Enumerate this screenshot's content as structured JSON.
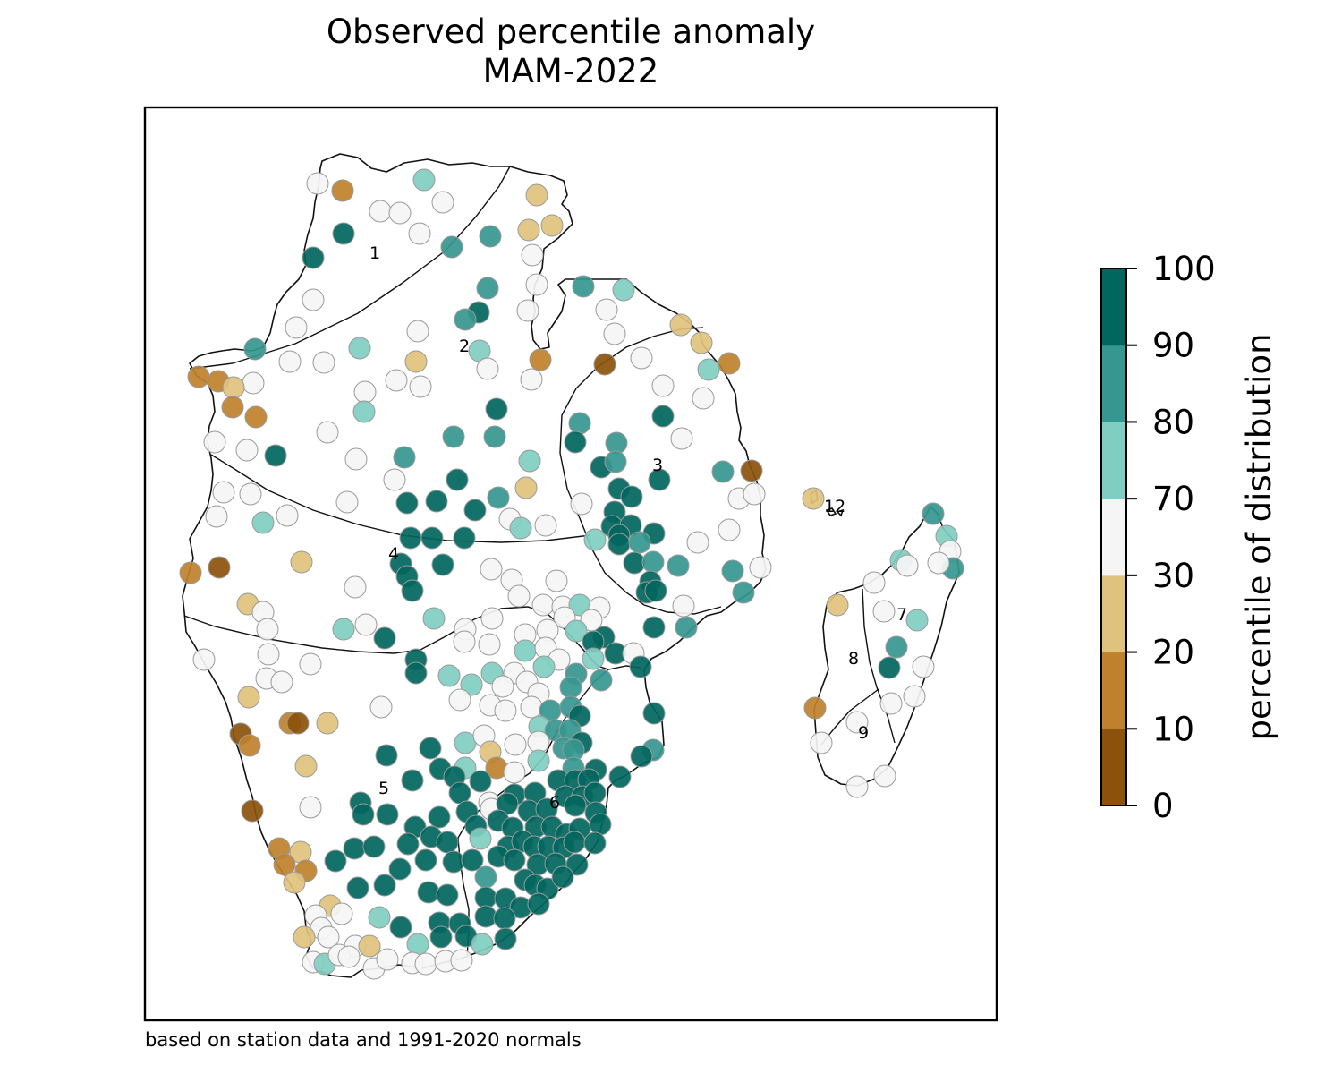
{
  "title": {
    "line1": "Observed percentile anomaly",
    "line2": "MAM-2022"
  },
  "footnote": "based on station data and 1991-2020 normals",
  "colorbar": {
    "label": "percentile of distribution",
    "ticks": [
      "0",
      "10",
      "20",
      "30",
      "70",
      "80",
      "90",
      "100"
    ],
    "classes": [
      {
        "from": 0,
        "to": 10,
        "color": "#8c510a"
      },
      {
        "from": 10,
        "to": 20,
        "color": "#bf812d"
      },
      {
        "from": 20,
        "to": 30,
        "color": "#dfc27d"
      },
      {
        "from": 30,
        "to": 70,
        "color": "#f5f5f5"
      },
      {
        "from": 70,
        "to": 80,
        "color": "#80cdc1"
      },
      {
        "from": 80,
        "to": 90,
        "color": "#35978f"
      },
      {
        "from": 90,
        "to": 100,
        "color": "#01665e"
      }
    ]
  },
  "regions": [
    "1",
    "2",
    "3",
    "4",
    "5",
    "6",
    "7",
    "8",
    "9",
    "12"
  ],
  "stations": [
    [
      355,
      205,
      "n"
    ],
    [
      383,
      213,
      "o"
    ],
    [
      474,
      201,
      "s"
    ],
    [
      600,
      218,
      "y"
    ],
    [
      425,
      236,
      "n"
    ],
    [
      447,
      238,
      "n"
    ],
    [
      495,
      226,
      "n"
    ],
    [
      591,
      257,
      "y"
    ],
    [
      617,
      252,
      "y"
    ],
    [
      384,
      261,
      "d"
    ],
    [
      469,
      261,
      "n"
    ],
    [
      505,
      276,
      "m"
    ],
    [
      548,
      264,
      "m"
    ],
    [
      595,
      285,
      "n"
    ],
    [
      350,
      288,
      "d"
    ],
    [
      600,
      318,
      "n"
    ],
    [
      545,
      322,
      "m"
    ],
    [
      652,
      320,
      "m"
    ],
    [
      697,
      324,
      "s"
    ],
    [
      350,
      335,
      "n"
    ],
    [
      590,
      347,
      "n"
    ],
    [
      535,
      349,
      "d"
    ],
    [
      520,
      357,
      "m"
    ],
    [
      678,
      346,
      "n"
    ],
    [
      761,
      363,
      "y"
    ],
    [
      331,
      366,
      "n"
    ],
    [
      467,
      370,
      "n"
    ],
    [
      687,
      373,
      "n"
    ],
    [
      784,
      383,
      "y"
    ],
    [
      285,
      390,
      "m"
    ],
    [
      402,
      389,
      "s"
    ],
    [
      536,
      392,
      "s"
    ],
    [
      465,
      404,
      "y"
    ],
    [
      324,
      404,
      "n"
    ],
    [
      362,
      405,
      "n"
    ],
    [
      545,
      412,
      "n"
    ],
    [
      604,
      402,
      "o"
    ],
    [
      676,
      407,
      "b"
    ],
    [
      717,
      400,
      "n"
    ],
    [
      792,
      413,
      "s"
    ],
    [
      815,
      406,
      "o"
    ],
    [
      222,
      421,
      "o"
    ],
    [
      244,
      426,
      "o"
    ],
    [
      283,
      428,
      "n"
    ],
    [
      261,
      433,
      "y"
    ],
    [
      443,
      425,
      "n"
    ],
    [
      470,
      432,
      "n"
    ],
    [
      594,
      424,
      "n"
    ],
    [
      741,
      431,
      "n"
    ],
    [
      786,
      445,
      "n"
    ],
    [
      408,
      438,
      "n"
    ],
    [
      260,
      455,
      "o"
    ],
    [
      286,
      466,
      "o"
    ],
    [
      407,
      460,
      "s"
    ],
    [
      555,
      457,
      "d"
    ],
    [
      741,
      465,
      "d"
    ],
    [
      648,
      473,
      "m"
    ],
    [
      366,
      483,
      "n"
    ],
    [
      507,
      488,
      "m"
    ],
    [
      553,
      488,
      "m"
    ],
    [
      643,
      494,
      "d"
    ],
    [
      689,
      495,
      "m"
    ],
    [
      762,
      490,
      "n"
    ],
    [
      240,
      494,
      "n"
    ],
    [
      276,
      503,
      "n"
    ],
    [
      308,
      509,
      "d"
    ],
    [
      398,
      513,
      "n"
    ],
    [
      452,
      511,
      "m"
    ],
    [
      592,
      515,
      "s"
    ],
    [
      672,
      522,
      "d"
    ],
    [
      688,
      516,
      "m"
    ],
    [
      737,
      536,
      "d"
    ],
    [
      808,
      527,
      "m"
    ],
    [
      840,
      526,
      "b"
    ],
    [
      441,
      536,
      "n"
    ],
    [
      511,
      536,
      "d"
    ],
    [
      588,
      545,
      "y"
    ],
    [
      692,
      546,
      "d"
    ],
    [
      706,
      555,
      "d"
    ],
    [
      250,
      550,
      "n"
    ],
    [
      280,
      552,
      "n"
    ],
    [
      388,
      561,
      "n"
    ],
    [
      455,
      562,
      "d"
    ],
    [
      488,
      560,
      "d"
    ],
    [
      557,
      556,
      "m"
    ],
    [
      531,
      570,
      "d"
    ],
    [
      650,
      563,
      "n"
    ],
    [
      687,
      572,
      "d"
    ],
    [
      684,
      588,
      "d"
    ],
    [
      705,
      587,
      "d"
    ],
    [
      826,
      557,
      "n"
    ],
    [
      843,
      552,
      "n"
    ],
    [
      909,
      557,
      "y"
    ],
    [
      242,
      577,
      "n"
    ],
    [
      294,
      584,
      "s"
    ],
    [
      321,
      576,
      "n"
    ],
    [
      570,
      580,
      "n"
    ],
    [
      582,
      590,
      "s"
    ],
    [
      610,
      587,
      "n"
    ],
    [
      692,
      598,
      "d"
    ],
    [
      731,
      596,
      "d"
    ],
    [
      815,
      592,
      "n"
    ],
    [
      459,
      601,
      "d"
    ],
    [
      483,
      601,
      "d"
    ],
    [
      519,
      601,
      "d"
    ],
    [
      665,
      603,
      "s"
    ],
    [
      692,
      608,
      "d"
    ],
    [
      715,
      606,
      "m"
    ],
    [
      709,
      629,
      "d"
    ],
    [
      780,
      606,
      "n"
    ],
    [
      213,
      640,
      "o"
    ],
    [
      245,
      634,
      "b"
    ],
    [
      337,
      628,
      "y"
    ],
    [
      495,
      631,
      "d"
    ],
    [
      448,
      630,
      "d"
    ],
    [
      549,
      636,
      "n"
    ],
    [
      572,
      648,
      "n"
    ],
    [
      622,
      649,
      "n"
    ],
    [
      730,
      628,
      "m"
    ],
    [
      758,
      632,
      "m"
    ],
    [
      819,
      638,
      "m"
    ],
    [
      850,
      634,
      "n"
    ],
    [
      455,
      644,
      "d"
    ],
    [
      461,
      660,
      "d"
    ],
    [
      397,
      656,
      "n"
    ],
    [
      727,
      650,
      "d"
    ],
    [
      723,
      662,
      "d"
    ],
    [
      733,
      660,
      "d"
    ],
    [
      580,
      666,
      "n"
    ],
    [
      607,
      676,
      "n"
    ],
    [
      629,
      678,
      "n"
    ],
    [
      648,
      676,
      "s"
    ],
    [
      670,
      679,
      "n"
    ],
    [
      764,
      677,
      "n"
    ],
    [
      831,
      662,
      "m"
    ],
    [
      277,
      675,
      "y"
    ],
    [
      294,
      684,
      "n"
    ],
    [
      299,
      703,
      "n"
    ],
    [
      485,
      691,
      "s"
    ],
    [
      520,
      703,
      "n"
    ],
    [
      550,
      691,
      "n"
    ],
    [
      631,
      690,
      "n"
    ],
    [
      661,
      693,
      "n"
    ],
    [
      384,
      703,
      "s"
    ],
    [
      409,
      698,
      "n"
    ],
    [
      587,
      709,
      "n"
    ],
    [
      612,
      704,
      "n"
    ],
    [
      644,
      705,
      "s"
    ],
    [
      675,
      712,
      "d"
    ],
    [
      663,
      717,
      "d"
    ],
    [
      688,
      730,
      "d"
    ],
    [
      731,
      701,
      "d"
    ],
    [
      767,
      701,
      "m"
    ],
    [
      430,
      713,
      "d"
    ],
    [
      519,
      717,
      "n"
    ],
    [
      547,
      720,
      "n"
    ],
    [
      587,
      727,
      "s"
    ],
    [
      610,
      724,
      "n"
    ],
    [
      625,
      737,
      "n"
    ],
    [
      663,
      736,
      "s"
    ],
    [
      708,
      730,
      "n"
    ],
    [
      465,
      737,
      "d"
    ],
    [
      465,
      752,
      "d"
    ],
    [
      502,
      755,
      "s"
    ],
    [
      527,
      765,
      "s"
    ],
    [
      550,
      752,
      "s"
    ],
    [
      575,
      752,
      "n"
    ],
    [
      608,
      745,
      "s"
    ],
    [
      644,
      753,
      "m"
    ],
    [
      672,
      760,
      "m"
    ],
    [
      716,
      745,
      "d"
    ],
    [
      228,
      737,
      "n"
    ],
    [
      300,
      731,
      "n"
    ],
    [
      347,
      742,
      "n"
    ],
    [
      298,
      758,
      "n"
    ],
    [
      315,
      762,
      "n"
    ],
    [
      562,
      767,
      "n"
    ],
    [
      589,
      762,
      "n"
    ],
    [
      602,
      775,
      "n"
    ],
    [
      638,
      768,
      "m"
    ],
    [
      278,
      779,
      "y"
    ],
    [
      514,
      782,
      "n"
    ],
    [
      548,
      788,
      "n"
    ],
    [
      565,
      794,
      "n"
    ],
    [
      594,
      790,
      "n"
    ],
    [
      615,
      794,
      "m"
    ],
    [
      638,
      790,
      "m"
    ],
    [
      648,
      800,
      "d"
    ],
    [
      731,
      797,
      "d"
    ],
    [
      426,
      790,
      "n"
    ],
    [
      324,
      808,
      "o"
    ],
    [
      333,
      808,
      "b"
    ],
    [
      366,
      808,
      "y"
    ],
    [
      603,
      812,
      "s"
    ],
    [
      621,
      816,
      "m"
    ],
    [
      637,
      816,
      "m"
    ],
    [
      269,
      820,
      "b"
    ],
    [
      279,
      833,
      "o"
    ],
    [
      520,
      830,
      "s"
    ],
    [
      541,
      822,
      "n"
    ],
    [
      576,
      832,
      "n"
    ],
    [
      602,
      829,
      "n"
    ],
    [
      630,
      836,
      "m"
    ],
    [
      650,
      830,
      "d"
    ],
    [
      641,
      838,
      "m"
    ],
    [
      730,
      838,
      "m"
    ],
    [
      717,
      845,
      "d"
    ],
    [
      432,
      844,
      "d"
    ],
    [
      481,
      836,
      "d"
    ],
    [
      492,
      859,
      "d"
    ],
    [
      548,
      840,
      "y"
    ],
    [
      555,
      858,
      "o"
    ],
    [
      575,
      863,
      "n"
    ],
    [
      602,
      850,
      "s"
    ],
    [
      641,
      858,
      "m"
    ],
    [
      666,
      860,
      "d"
    ],
    [
      342,
      856,
      "y"
    ],
    [
      520,
      858,
      "s"
    ],
    [
      461,
      872,
      "d"
    ],
    [
      508,
      868,
      "d"
    ],
    [
      537,
      873,
      "d"
    ],
    [
      624,
      872,
      "d"
    ],
    [
      643,
      872,
      "d"
    ],
    [
      658,
      871,
      "d"
    ],
    [
      693,
      868,
      "d"
    ],
    [
      403,
      897,
      "d"
    ],
    [
      282,
      906,
      "b"
    ],
    [
      347,
      902,
      "n"
    ],
    [
      514,
      886,
      "d"
    ],
    [
      547,
      897,
      "n"
    ],
    [
      575,
      888,
      "d"
    ],
    [
      598,
      886,
      "d"
    ],
    [
      632,
      890,
      "d"
    ],
    [
      651,
      890,
      "d"
    ],
    [
      665,
      886,
      "d"
    ],
    [
      406,
      910,
      "d"
    ],
    [
      433,
      910,
      "d"
    ],
    [
      491,
      913,
      "d"
    ],
    [
      522,
      907,
      "d"
    ],
    [
      549,
      904,
      "n"
    ],
    [
      567,
      898,
      "d"
    ],
    [
      591,
      906,
      "d"
    ],
    [
      611,
      904,
      "d"
    ],
    [
      643,
      900,
      "d"
    ],
    [
      666,
      908,
      "d"
    ],
    [
      464,
      924,
      "d"
    ],
    [
      482,
      935,
      "d"
    ],
    [
      532,
      923,
      "d"
    ],
    [
      557,
      917,
      "d"
    ],
    [
      573,
      925,
      "d"
    ],
    [
      599,
      924,
      "d"
    ],
    [
      617,
      924,
      "d"
    ],
    [
      633,
      932,
      "d"
    ],
    [
      648,
      926,
      "d"
    ],
    [
      671,
      921,
      "d"
    ],
    [
      456,
      943,
      "d"
    ],
    [
      500,
      941,
      "d"
    ],
    [
      537,
      937,
      "s"
    ],
    [
      568,
      946,
      "d"
    ],
    [
      584,
      940,
      "d"
    ],
    [
      597,
      946,
      "d"
    ],
    [
      613,
      946,
      "d"
    ],
    [
      630,
      947,
      "d"
    ],
    [
      642,
      941,
      "d"
    ],
    [
      665,
      942,
      "d"
    ],
    [
      312,
      948,
      "o"
    ],
    [
      336,
      952,
      "y"
    ],
    [
      396,
      948,
      "d"
    ],
    [
      418,
      946,
      "d"
    ],
    [
      447,
      971,
      "d"
    ],
    [
      476,
      961,
      "d"
    ],
    [
      507,
      963,
      "d"
    ],
    [
      528,
      961,
      "d"
    ],
    [
      557,
      957,
      "d"
    ],
    [
      575,
      961,
      "d"
    ],
    [
      601,
      966,
      "d"
    ],
    [
      621,
      965,
      "d"
    ],
    [
      645,
      966,
      "d"
    ],
    [
      375,
      962,
      "d"
    ],
    [
      318,
      966,
      "o"
    ],
    [
      342,
      973,
      "o"
    ],
    [
      329,
      986,
      "y"
    ],
    [
      400,
      992,
      "d"
    ],
    [
      430,
      989,
      "d"
    ],
    [
      479,
      997,
      "d"
    ],
    [
      500,
      1000,
      "d"
    ],
    [
      543,
      980,
      "m"
    ],
    [
      587,
      983,
      "d"
    ],
    [
      598,
      989,
      "d"
    ],
    [
      612,
      993,
      "d"
    ],
    [
      629,
      980,
      "d"
    ],
    [
      543,
      1003,
      "d"
    ],
    [
      565,
      1004,
      "d"
    ],
    [
      582,
      1014,
      "d"
    ],
    [
      602,
      1010,
      "d"
    ],
    [
      369,
      1012,
      "y"
    ],
    [
      353,
      1023,
      "n"
    ],
    [
      382,
      1021,
      "n"
    ],
    [
      359,
      1037,
      "n"
    ],
    [
      424,
      1025,
      "s"
    ],
    [
      448,
      1036,
      "d"
    ],
    [
      491,
      1031,
      "d"
    ],
    [
      514,
      1032,
      "d"
    ],
    [
      543,
      1024,
      "d"
    ],
    [
      564,
      1026,
      "d"
    ],
    [
      340,
      1047,
      "y"
    ],
    [
      367,
      1047,
      "n"
    ],
    [
      397,
      1057,
      "n"
    ],
    [
      413,
      1057,
      "y"
    ],
    [
      467,
      1055,
      "s"
    ],
    [
      493,
      1047,
      "d"
    ],
    [
      521,
      1046,
      "d"
    ],
    [
      539,
      1055,
      "s"
    ],
    [
      565,
      1049,
      "d"
    ],
    [
      350,
      1075,
      "n"
    ],
    [
      363,
      1077,
      "s"
    ],
    [
      379,
      1067,
      "n"
    ],
    [
      390,
      1069,
      "n"
    ],
    [
      418,
      1082,
      "n"
    ],
    [
      433,
      1072,
      "n"
    ],
    [
      461,
      1076,
      "n"
    ],
    [
      476,
      1077,
      "n"
    ],
    [
      498,
      1074,
      "n"
    ],
    [
      516,
      1073,
      "n"
    ],
    [
      1043,
      574,
      "m"
    ],
    [
      1058,
      599,
      "s"
    ],
    [
      1062,
      616,
      "n"
    ],
    [
      1065,
      635,
      "m"
    ],
    [
      1007,
      626,
      "s"
    ],
    [
      1014,
      632,
      "n"
    ],
    [
      1049,
      629,
      "n"
    ],
    [
      977,
      651,
      "n"
    ],
    [
      936,
      676,
      "y"
    ],
    [
      988,
      683,
      "n"
    ],
    [
      1025,
      693,
      "s"
    ],
    [
      1002,
      723,
      "m"
    ],
    [
      994,
      746,
      "d"
    ],
    [
      1032,
      745,
      "n"
    ],
    [
      1022,
      778,
      "n"
    ],
    [
      996,
      786,
      "n"
    ],
    [
      911,
      791,
      "o"
    ],
    [
      958,
      807,
      "n"
    ],
    [
      918,
      830,
      "n"
    ],
    [
      989,
      867,
      "n"
    ],
    [
      958,
      879,
      "n"
    ]
  ]
}
